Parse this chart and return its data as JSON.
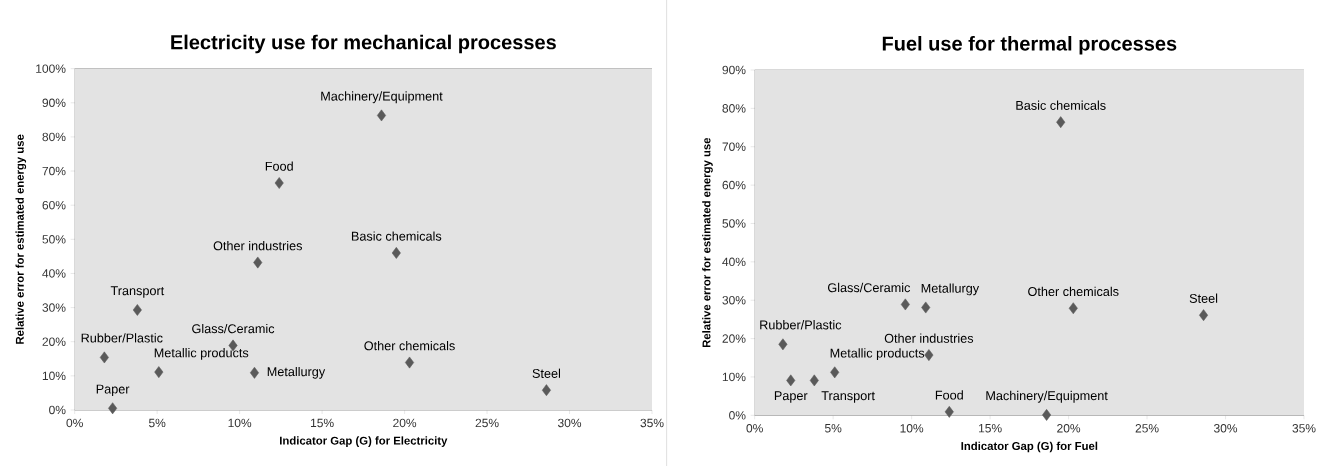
{
  "chart_data": [
    {
      "type": "scatter",
      "title": "Electricity use for mechanical processes",
      "xlabel": "Indicator Gap (G) for Electricity",
      "ylabel": "Relative error for estimated energy use",
      "series": [
        {
          "color": "#5a5a5a",
          "x": [
            18.6,
            12.4,
            19.5,
            11.1,
            3.8,
            9.6,
            1.8,
            5.1,
            10.9,
            20.3,
            28.6,
            2.3
          ],
          "values": [
            86.3,
            66.5,
            46,
            43.2,
            29.3,
            18.9,
            15.4,
            11.1,
            10.9,
            13.9,
            5.8,
            0.5
          ]
        }
      ],
      "annotations": [
        {
          "text": "Machinery/Equipment",
          "x": 18.6,
          "y": 86.3
        },
        {
          "text": "Food",
          "x": 12.4,
          "y": 66.5
        },
        {
          "text": "Basic chemicals",
          "x": 19.5,
          "y": 46
        },
        {
          "text": "Other industries",
          "x": 11.1,
          "y": 43.2
        },
        {
          "text": "Transport",
          "x": 3.8,
          "y": 29.3
        },
        {
          "text": "Glass/Ceramic",
          "x": 9.6,
          "y": 18.9
        },
        {
          "text": "Rubber/Plastic",
          "x": 1.8,
          "y": 15.4
        },
        {
          "text": "Metallic products",
          "x": 5.1,
          "y": 11.1
        },
        {
          "text": "Metallurgy",
          "x": 10.9,
          "y": 10.9
        },
        {
          "text": "Other chemicals",
          "x": 20.3,
          "y": 13.9
        },
        {
          "text": "Steel",
          "x": 28.6,
          "y": 5.8
        },
        {
          "text": "Paper",
          "x": 2.3,
          "y": 0.5
        }
      ],
      "xlim": [
        0,
        35
      ],
      "ylim": [
        0,
        100
      ],
      "xticks": [
        {
          "value": 0,
          "label": "0%"
        },
        {
          "value": 5,
          "label": "5%"
        },
        {
          "value": 10,
          "label": "10%"
        },
        {
          "value": 15,
          "label": "15%"
        },
        {
          "value": 20,
          "label": "20%"
        },
        {
          "value": 25,
          "label": "25%"
        },
        {
          "value": 30,
          "label": "30%"
        },
        {
          "value": 35,
          "label": "35%"
        }
      ],
      "yticks": [
        {
          "value": 0,
          "label": "0%"
        },
        {
          "value": 10,
          "label": "10%"
        },
        {
          "value": 20,
          "label": "20%"
        },
        {
          "value": 30,
          "label": "30%"
        },
        {
          "value": 40,
          "label": "40%"
        },
        {
          "value": 50,
          "label": "50%"
        },
        {
          "value": 60,
          "label": "60%"
        },
        {
          "value": 70,
          "label": "70%"
        },
        {
          "value": 80,
          "label": "80%"
        },
        {
          "value": 90,
          "label": "90%"
        },
        {
          "value": 100,
          "label": "100%"
        }
      ],
      "grid": "y",
      "marker": "diamond"
    },
    {
      "type": "scatter",
      "title": "Fuel use for thermal processes",
      "xlabel": "Indicator Gap (G) for Fuel",
      "ylabel": "Relative error for estimated energy use",
      "series": [
        {
          "color": "#5a5a5a",
          "x": [
            19.5,
            9.6,
            10.9,
            20.3,
            28.6,
            1.8,
            11.1,
            5.1,
            2.3,
            3.8,
            12.4,
            18.6
          ],
          "values": [
            76.4,
            28.9,
            28.1,
            27.9,
            26.1,
            18.5,
            15.7,
            11.2,
            9.1,
            9.1,
            0.9,
            0.1
          ]
        }
      ],
      "annotations": [
        {
          "text": "Basic chemicals",
          "x": 19.5,
          "y": 76.4
        },
        {
          "text": "Glass/Ceramic",
          "x": 9.6,
          "y": 28.9
        },
        {
          "text": "Metallurgy",
          "x": 10.9,
          "y": 28.1
        },
        {
          "text": "Other chemicals",
          "x": 20.3,
          "y": 27.9
        },
        {
          "text": "Steel",
          "x": 28.6,
          "y": 26.1
        },
        {
          "text": "Rubber/Plastic",
          "x": 1.8,
          "y": 18.5
        },
        {
          "text": "Other industries",
          "x": 11.1,
          "y": 15.7
        },
        {
          "text": "Metallic products",
          "x": 5.1,
          "y": 11.2
        },
        {
          "text": "Paper",
          "x": 2.3,
          "y": 9.1
        },
        {
          "text": "Transport",
          "x": 3.8,
          "y": 9.1
        },
        {
          "text": "Food",
          "x": 12.4,
          "y": 0.9
        },
        {
          "text": "Machinery/Equipment",
          "x": 18.6,
          "y": 0.1
        }
      ],
      "xlim": [
        0,
        35
      ],
      "ylim": [
        0,
        90
      ],
      "xticks": [
        {
          "value": 0,
          "label": "0%"
        },
        {
          "value": 5,
          "label": "5%"
        },
        {
          "value": 10,
          "label": "10%"
        },
        {
          "value": 15,
          "label": "15%"
        },
        {
          "value": 20,
          "label": "20%"
        },
        {
          "value": 25,
          "label": "25%"
        },
        {
          "value": 30,
          "label": "30%"
        },
        {
          "value": 35,
          "label": "35%"
        }
      ],
      "yticks": [
        {
          "value": 0,
          "label": "0%"
        },
        {
          "value": 10,
          "label": "10%"
        },
        {
          "value": 20,
          "label": "20%"
        },
        {
          "value": 30,
          "label": "30%"
        },
        {
          "value": 40,
          "label": "40%"
        },
        {
          "value": 50,
          "label": "50%"
        },
        {
          "value": 60,
          "label": "60%"
        },
        {
          "value": 70,
          "label": "70%"
        },
        {
          "value": 80,
          "label": "80%"
        },
        {
          "value": 90,
          "label": "90%"
        }
      ],
      "grid": "y",
      "marker": "diamond"
    }
  ]
}
